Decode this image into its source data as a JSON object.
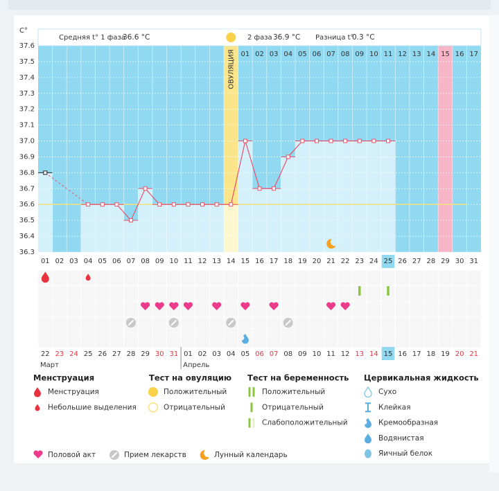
{
  "chart_data": {
    "type": "line",
    "y_label": "C°",
    "categories": [
      "01",
      "02",
      "03",
      "04",
      "05",
      "06",
      "07",
      "08",
      "09",
      "10",
      "11",
      "12",
      "13",
      "14",
      "15",
      "16",
      "17",
      "18",
      "19",
      "20",
      "21",
      "22",
      "23",
      "24",
      "25",
      "26",
      "27",
      "28",
      "29",
      "30",
      "31"
    ],
    "values": [
      36.8,
      null,
      null,
      36.6,
      36.6,
      36.6,
      36.5,
      36.7,
      36.6,
      36.6,
      36.6,
      36.6,
      36.6,
      36.6,
      37.0,
      36.7,
      36.7,
      36.9,
      37.0,
      37.0,
      37.0,
      37.0,
      37.0,
      37.0,
      37.0,
      null,
      null,
      null,
      null,
      null,
      null
    ],
    "color": "#e8506a",
    "ylim": [
      36.3,
      37.6
    ],
    "yticks": [
      36.3,
      36.4,
      36.5,
      36.6,
      36.7,
      36.8,
      36.9,
      {
        "value": 37,
        "label": "37.0"
      },
      37.1,
      37.2,
      37.3,
      37.4,
      37.5,
      37.6
    ],
    "grid": true,
    "phase_stats": [
      {
        "name": "Средняя t° 1 фаза",
        "value": 36.6,
        "value_label": "36.6 °C"
      },
      {
        "name": "2 фаза",
        "value": 36.9,
        "value_label": "36.9 °C"
      },
      {
        "name": "Разница t°",
        "value": 0.3,
        "value_label": "0.3 °C"
      }
    ],
    "ovulation": {
      "label": "ОВУЛЯЦИЯ",
      "day": "14"
    },
    "phase2_days": [
      "01",
      "02",
      "03",
      "04",
      "05",
      "06",
      "07",
      "08",
      "09",
      "10",
      "11",
      "12",
      "13",
      "14",
      "15",
      "16",
      "17"
    ],
    "dates": [
      "22",
      "23",
      "24",
      "25",
      "26",
      "27",
      "28",
      "29",
      "30",
      "31",
      "01",
      "02",
      "03",
      "04",
      "05",
      "06",
      "07",
      "08",
      "09",
      "10",
      "11",
      "12",
      "13",
      "14",
      "15",
      "16",
      "17",
      "18",
      "19",
      "20",
      "21"
    ],
    "date_weekend": [
      false,
      true,
      true,
      false,
      false,
      false,
      false,
      false,
      true,
      true,
      false,
      false,
      false,
      false,
      false,
      true,
      true,
      false,
      false,
      false,
      false,
      false,
      true,
      true,
      false,
      false,
      false,
      false,
      false,
      true,
      true
    ],
    "months": [
      {
        "name": "Март",
        "start": "22"
      },
      {
        "name": "Апрель",
        "start": "01"
      }
    ],
    "today": {
      "day": "25",
      "date": "15"
    },
    "expected_period_day": "29",
    "markers": {
      "menstruation": [
        "01"
      ],
      "spotting": [
        "04"
      ],
      "pregnancy_test_negative": [
        "23",
        "25"
      ],
      "intercourse": [
        "08",
        "09",
        "10",
        "11",
        "13",
        "15",
        "17",
        "21",
        "22"
      ],
      "medication": [
        "07",
        "10",
        "14",
        "18"
      ],
      "fluid_creamy": [
        "15"
      ],
      "moon": [
        "21"
      ]
    },
    "legend": {
      "groups": [
        {
          "title": "Менструация",
          "items": [
            "Менструация",
            "Небольшие выделения"
          ]
        },
        {
          "title": "Тест на овуляцию",
          "items": [
            "Положительный",
            "Отрицательный"
          ]
        },
        {
          "title": "Тест на беременность",
          "items": [
            "Положительный",
            "Отрицательный",
            "Слабоположительный"
          ]
        },
        {
          "title": "Цервикальная жидкость",
          "items": [
            "Сухо",
            "Клейкая",
            "Кремообразная",
            "Водянистая",
            "Яичный белок"
          ]
        }
      ],
      "extra": [
        "Половой акт",
        "Прием лекарств",
        "Лунный календарь"
      ]
    }
  }
}
